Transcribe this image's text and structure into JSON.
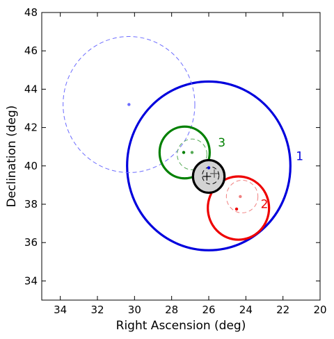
{
  "chart_data": {
    "type": "scatter",
    "xlabel": "Right Ascension (deg)",
    "ylabel": "Declination (deg)",
    "xlim": [
      35,
      20
    ],
    "ylim": [
      33,
      48
    ],
    "x_inverted": true,
    "grid": false,
    "xticks": [
      34,
      32,
      30,
      28,
      26,
      24,
      22,
      20
    ],
    "yticks": [
      34,
      36,
      38,
      40,
      42,
      44,
      46,
      48
    ],
    "circles": [
      {
        "id": "c1",
        "label": "1",
        "cx": 26.0,
        "cy": 40.0,
        "r": 4.4,
        "color": "#0000dd",
        "style": "solid",
        "fill": "none"
      },
      {
        "id": "c1d",
        "label": "",
        "cx": 30.3,
        "cy": 43.2,
        "r": 3.55,
        "color": "#6b6bff",
        "style": "dashed",
        "fill": "none"
      },
      {
        "id": "c2",
        "label": "2",
        "cx": 24.4,
        "cy": 37.8,
        "r": 1.65,
        "color": "#ee0000",
        "style": "solid",
        "fill": "none"
      },
      {
        "id": "c2d",
        "label": "",
        "cx": 24.2,
        "cy": 38.4,
        "r": 0.85,
        "color": "#f08080",
        "style": "dashed",
        "fill": "none"
      },
      {
        "id": "c3",
        "label": "3",
        "cx": 27.3,
        "cy": 40.7,
        "r": 1.35,
        "color": "#008000",
        "style": "solid",
        "fill": "none"
      },
      {
        "id": "c3d",
        "label": "",
        "cx": 26.9,
        "cy": 40.6,
        "r": 0.8,
        "color": "#55aa55",
        "style": "dashed",
        "fill": "none"
      },
      {
        "id": "c0",
        "label": "",
        "cx": 26.0,
        "cy": 39.45,
        "r": 0.85,
        "color": "#000000",
        "style": "solid",
        "fill": "#d3d3d3"
      },
      {
        "id": "c0d",
        "label": "",
        "cx": 25.9,
        "cy": 39.5,
        "r": 0.45,
        "color": "#000000",
        "style": "dashed",
        "fill": "none"
      }
    ],
    "points": [
      {
        "x": 30.3,
        "y": 43.2,
        "color": "#6b6bff"
      },
      {
        "x": 24.5,
        "y": 37.75,
        "color": "#ee0000"
      },
      {
        "x": 24.3,
        "y": 38.4,
        "color": "#f08080"
      },
      {
        "x": 27.35,
        "y": 40.7,
        "color": "#008000"
      },
      {
        "x": 26.9,
        "y": 40.7,
        "color": "#55aa55"
      },
      {
        "x": 26.0,
        "y": 39.9,
        "color": "#0000dd"
      }
    ],
    "crosses": [
      {
        "x": 26.1,
        "y": 39.45,
        "color": "#000000"
      },
      {
        "x": 25.7,
        "y": 39.6,
        "color": "#555555"
      }
    ],
    "annotations": [
      {
        "text": "1",
        "x": 21.1,
        "y": 40.3,
        "color": "#0000dd"
      },
      {
        "text": "2",
        "x": 23.0,
        "y": 37.8,
        "color": "#ee0000"
      },
      {
        "text": "3",
        "x": 25.3,
        "y": 41.0,
        "color": "#008000"
      }
    ]
  }
}
